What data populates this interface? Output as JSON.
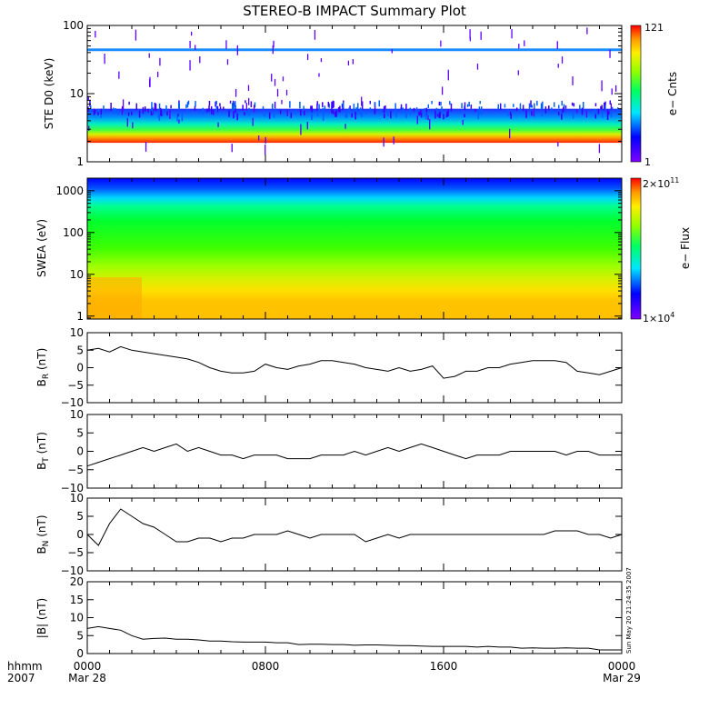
{
  "title": "STEREO-B IMPACT Summary Plot",
  "timestamp": "Sun May 20 21:24:35 2007",
  "x_axis": {
    "row1_label": "hhmm",
    "row2_label": "2007",
    "ticks": [
      {
        "hour": 0,
        "time": "0000",
        "date": "Mar 28"
      },
      {
        "hour": 8,
        "time": "0800",
        "date": ""
      },
      {
        "hour": 16,
        "time": "1600",
        "date": ""
      },
      {
        "hour": 24,
        "time": "0000",
        "date": "Mar 29"
      }
    ]
  },
  "panels": {
    "ste": {
      "ylabel": "STE D0 (keV)",
      "yticks": [
        "1",
        "10",
        "100"
      ],
      "colorbar": {
        "label": "e− Cnts",
        "max": "121",
        "min": "1"
      }
    },
    "swea": {
      "ylabel": "SWEA (eV)",
      "yticks": [
        "1",
        "10",
        "100",
        "1000"
      ],
      "colorbar": {
        "label": "e− Flux",
        "max_base": "2×10",
        "max_exp": "11",
        "min_base": "1×10",
        "min_exp": "4"
      }
    },
    "br": {
      "label_main": "B",
      "label_sub": "R",
      "label_unit": " (nT)",
      "yticks": [
        "−10",
        "−5",
        "0",
        "5",
        "10"
      ]
    },
    "bt": {
      "label_main": "B",
      "label_sub": "T",
      "label_unit": " (nT)",
      "yticks": [
        "−10",
        "−5",
        "0",
        "5",
        "10"
      ]
    },
    "bn": {
      "label_main": "B",
      "label_sub": "N",
      "label_unit": " (nT)",
      "yticks": [
        "−10",
        "−5",
        "0",
        "5",
        "10"
      ]
    },
    "bmag": {
      "ylabel": "|B| (nT)",
      "yticks": [
        "0",
        "5",
        "10",
        "15",
        "20"
      ]
    }
  },
  "chart_data": [
    {
      "type": "heatmap",
      "title": "STE D0 electron counts",
      "ylabel": "STE D0 (keV)",
      "y_scale": "log",
      "ylim": [
        1,
        100
      ],
      "xlim_hours": [
        0,
        24
      ],
      "colorbar_range": [
        1,
        121
      ],
      "colormap": "rainbow",
      "features": [
        {
          "energy_keV": [
            1.9,
            2.2
          ],
          "counts": 110
        },
        {
          "energy_keV": [
            2.2,
            2.9
          ],
          "counts": 80
        },
        {
          "energy_keV": [
            2.9,
            4.0
          ],
          "counts": 35
        },
        {
          "energy_keV": [
            4.0,
            6.0
          ],
          "counts": 8
        },
        {
          "energy_keV": [
            42,
            46
          ],
          "counts": 3
        }
      ]
    },
    {
      "type": "heatmap",
      "title": "SWEA electron flux",
      "ylabel": "SWEA (eV)",
      "y_scale": "log",
      "ylim": [
        1,
        2000
      ],
      "xlim_hours": [
        0,
        24
      ],
      "colorbar_range": [
        10000,
        200000000000
      ],
      "colormap": "rainbow",
      "colorbar_scale": "log"
    },
    {
      "type": "line",
      "ylabel": "B_R (nT)",
      "ylim": [
        -10,
        10
      ],
      "x_hours": [
        0,
        0.5,
        1,
        1.5,
        2,
        2.5,
        3,
        3.5,
        4,
        4.5,
        5,
        5.5,
        6,
        6.5,
        7,
        7.5,
        8,
        8.5,
        9,
        9.5,
        10,
        10.5,
        11,
        11.5,
        12,
        12.5,
        13,
        13.5,
        14,
        14.5,
        15,
        15.5,
        16,
        16.5,
        17,
        17.5,
        18,
        18.5,
        19,
        19.5,
        20,
        20.5,
        21,
        21.5,
        22,
        22.5,
        23,
        23.5,
        24
      ],
      "values": [
        5,
        5.5,
        4.5,
        6,
        5,
        4.5,
        4,
        3.5,
        3,
        2.5,
        1.5,
        0,
        -1,
        -1.5,
        -1.5,
        -1,
        1,
        0,
        -0.5,
        0.5,
        1,
        2,
        2,
        1.5,
        1,
        0,
        -0.5,
        -1,
        0,
        -1,
        -0.5,
        0.5,
        -3,
        -2.5,
        -1,
        -1,
        0,
        0,
        1,
        1.5,
        2,
        2,
        2,
        1.5,
        -1,
        -1.5,
        -2,
        -1,
        0
      ]
    },
    {
      "type": "line",
      "ylabel": "B_T (nT)",
      "ylim": [
        -10,
        10
      ],
      "x_hours": [
        0,
        0.5,
        1,
        1.5,
        2,
        2.5,
        3,
        3.5,
        4,
        4.5,
        5,
        5.5,
        6,
        6.5,
        7,
        7.5,
        8,
        8.5,
        9,
        9.5,
        10,
        10.5,
        11,
        11.5,
        12,
        12.5,
        13,
        13.5,
        14,
        14.5,
        15,
        15.5,
        16,
        16.5,
        17,
        17.5,
        18,
        18.5,
        19,
        19.5,
        20,
        20.5,
        21,
        21.5,
        22,
        22.5,
        23,
        23.5,
        24
      ],
      "values": [
        -4,
        -3,
        -2,
        -1,
        0,
        1,
        0,
        1,
        2,
        0,
        1,
        0,
        -1,
        -1,
        -2,
        -1,
        -1,
        -1,
        -2,
        -2,
        -2,
        -1,
        -1,
        -1,
        0,
        -1,
        0,
        1,
        0,
        1,
        2,
        1,
        0,
        -1,
        -2,
        -1,
        -1,
        -1,
        0,
        0,
        0,
        0,
        0,
        -1,
        0,
        0,
        -1,
        -1,
        -1
      ]
    },
    {
      "type": "line",
      "ylabel": "B_N (nT)",
      "ylim": [
        -10,
        10
      ],
      "x_hours": [
        0,
        0.5,
        1,
        1.5,
        2,
        2.5,
        3,
        3.5,
        4,
        4.5,
        5,
        5.5,
        6,
        6.5,
        7,
        7.5,
        8,
        8.5,
        9,
        9.5,
        10,
        10.5,
        11,
        11.5,
        12,
        12.5,
        13,
        13.5,
        14,
        14.5,
        15,
        15.5,
        16,
        16.5,
        17,
        17.5,
        18,
        18.5,
        19,
        19.5,
        20,
        20.5,
        21,
        21.5,
        22,
        22.5,
        23,
        23.5,
        24
      ],
      "values": [
        0,
        -3,
        3,
        7,
        5,
        3,
        2,
        0,
        -2,
        -2,
        -1,
        -1,
        -2,
        -1,
        -1,
        0,
        0,
        0,
        1,
        0,
        -1,
        0,
        0,
        0,
        0,
        -2,
        -1,
        0,
        -1,
        0,
        0,
        0,
        0,
        0,
        0,
        0,
        0,
        0,
        0,
        0,
        0,
        0,
        1,
        1,
        1,
        0,
        0,
        -1,
        0
      ]
    },
    {
      "type": "line",
      "ylabel": "|B| (nT)",
      "ylim": [
        0,
        20
      ],
      "x_hours": [
        0,
        0.5,
        1,
        1.5,
        2,
        2.5,
        3,
        3.5,
        4,
        4.5,
        5,
        5.5,
        6,
        6.5,
        7,
        7.5,
        8,
        8.5,
        9,
        9.5,
        10,
        10.5,
        11,
        11.5,
        12,
        12.5,
        13,
        13.5,
        14,
        14.5,
        15,
        15.5,
        16,
        16.5,
        17,
        17.5,
        18,
        18.5,
        19,
        19.5,
        20,
        20.5,
        21,
        21.5,
        22,
        22.5,
        23,
        23.5,
        24
      ],
      "values": [
        7,
        7.5,
        7,
        6.5,
        5,
        4,
        4.2,
        4.3,
        4,
        4,
        3.8,
        3.5,
        3.5,
        3.3,
        3.2,
        3.2,
        3.2,
        3,
        3,
        2.5,
        2.6,
        2.6,
        2.5,
        2.5,
        2.3,
        2.4,
        2.4,
        2.3,
        2.2,
        2.2,
        2.1,
        2,
        2,
        2,
        2,
        1.8,
        2,
        1.8,
        1.8,
        1.5,
        1.6,
        1.5,
        1.5,
        1.6,
        1.5,
        1.5,
        1,
        1,
        1
      ]
    }
  ]
}
